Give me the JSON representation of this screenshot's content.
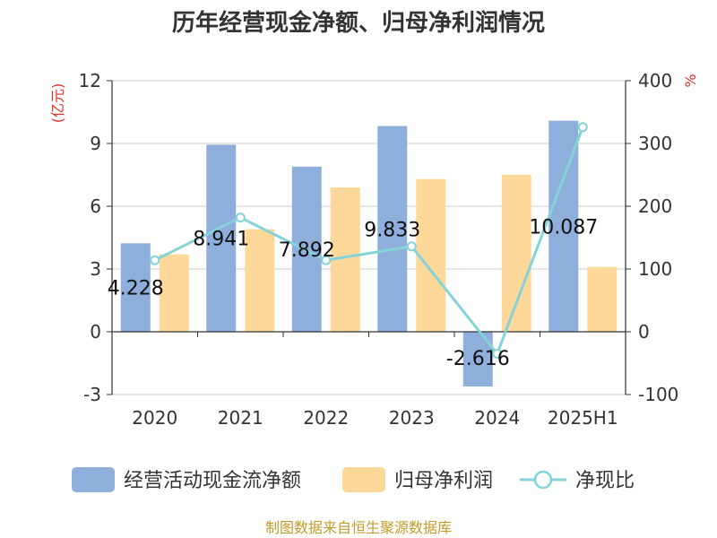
{
  "chart_data": {
    "type": "bar",
    "title": "历年经营现金净额、归母净利润情况",
    "categories": [
      "2020",
      "2021",
      "2022",
      "2023",
      "2024",
      "2025H1"
    ],
    "series": [
      {
        "name": "经营活动现金流净额",
        "type": "bar",
        "axis": "left",
        "color": "#8eaedb",
        "values": [
          4.228,
          8.941,
          7.892,
          9.833,
          -2.616,
          10.087
        ],
        "labels": [
          "4.228",
          "8.941",
          "7.892",
          "9.833",
          "-2.616",
          "10.087"
        ]
      },
      {
        "name": "归母净利润",
        "type": "bar",
        "axis": "left",
        "color": "#fdd898",
        "values": [
          3.7,
          4.9,
          6.9,
          7.3,
          7.5,
          3.1
        ]
      },
      {
        "name": "净现比",
        "type": "line",
        "axis": "right",
        "color": "#85d3d8",
        "values": [
          114,
          182,
          114,
          136,
          -35,
          326
        ]
      }
    ],
    "y_left": {
      "unit": "(亿元)",
      "ticks": [
        "12",
        "9",
        "6",
        "3",
        "0",
        "-3"
      ],
      "range": [
        -3,
        12
      ]
    },
    "y_right": {
      "unit": "%",
      "ticks": [
        "400",
        "300",
        "200",
        "100",
        "0",
        "-100"
      ],
      "range": [
        -100,
        400
      ]
    },
    "grid": true,
    "legend_position": "bottom",
    "source": "制图数据来自恒生聚源数据库",
    "unit_color": "#e0312b",
    "source_color": "#c49a2c"
  }
}
